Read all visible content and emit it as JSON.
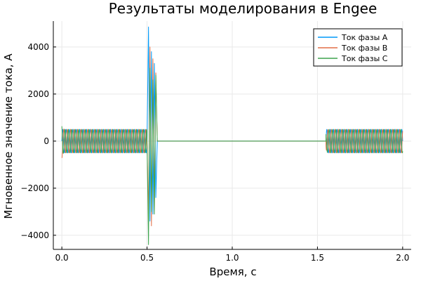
{
  "chart_data": {
    "type": "line",
    "title": "Результаты моделирования в Engee",
    "xlabel": "Время, с",
    "ylabel": "Мгновенное значение тока, А",
    "xlim": [
      -0.05,
      2.05
    ],
    "ylim": [
      -4600,
      5100
    ],
    "xticks": [
      0.0,
      0.5,
      1.0,
      1.5,
      2.0
    ],
    "xtick_labels": [
      "0.0",
      "0.5",
      "1.0",
      "1.5",
      "2.0"
    ],
    "yticks": [
      -4000,
      -2000,
      0,
      2000,
      4000
    ],
    "ytick_labels": [
      "−4000",
      "−2000",
      "0",
      "2000",
      "4000"
    ],
    "grid": true,
    "legend_position": "top-right",
    "series": [
      {
        "name": "Ток фазы A",
        "color": "#009af9",
        "phase_deg": 0,
        "segments": [
          {
            "t_start": 0.0,
            "t_end": 0.5,
            "amplitude": 500,
            "frequency_hz": 50,
            "initial_peak": 500
          },
          {
            "t_start": 0.5,
            "t_end": 0.56,
            "fault_peaks": [
              4850,
              -3400,
              3800,
              -3100,
              3300,
              -2400
            ]
          },
          {
            "t_start": 0.56,
            "t_end": 1.55,
            "amplitude": 0
          },
          {
            "t_start": 1.55,
            "t_end": 2.0,
            "amplitude": 500,
            "frequency_hz": 50,
            "initial_peak": 500
          }
        ]
      },
      {
        "name": "Ток фазы B",
        "color": "#e26f46",
        "phase_deg": -120,
        "segments": [
          {
            "t_start": 0.0,
            "t_end": 0.5,
            "amplitude": 500,
            "frequency_hz": 50,
            "initial_peak": -780
          },
          {
            "t_start": 0.5,
            "t_end": 0.56,
            "fault_peaks": [
              -3300,
              4000,
              -3600,
              3500,
              -3100,
              2900
            ]
          },
          {
            "t_start": 0.56,
            "t_end": 1.55,
            "amplitude": 0
          },
          {
            "t_start": 1.55,
            "t_end": 2.0,
            "amplitude": 500,
            "frequency_hz": 50,
            "initial_peak": 750
          }
        ]
      },
      {
        "name": "Ток фазы C",
        "color": "#3da44d",
        "phase_deg": 120,
        "segments": [
          {
            "t_start": 0.0,
            "t_end": 0.5,
            "amplitude": 500,
            "frequency_hz": 50,
            "initial_peak": 700
          },
          {
            "t_start": 0.5,
            "t_end": 0.56,
            "fault_peaks": [
              -4400,
              3100,
              -3000,
              2600,
              -3100,
              2800
            ]
          },
          {
            "t_start": 0.56,
            "t_end": 1.55,
            "amplitude": 0
          },
          {
            "t_start": 1.55,
            "t_end": 2.0,
            "amplitude": 500,
            "frequency_hz": 50,
            "initial_peak": -650
          }
        ]
      }
    ]
  }
}
